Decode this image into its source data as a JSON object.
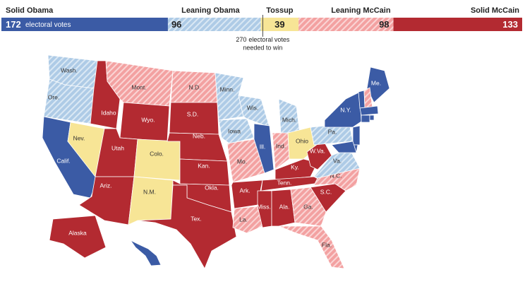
{
  "legend": {
    "unit_label": "electoral votes",
    "categories": [
      {
        "name": "Solid Obama",
        "votes": 172,
        "color": "#3b5ba5",
        "striped": false
      },
      {
        "name": "Leaning Obama",
        "votes": 96,
        "color": "#aecbe6",
        "striped": true
      },
      {
        "name": "Tossup",
        "votes": 39,
        "color": "#f7e596",
        "striped": false
      },
      {
        "name": "Leaning McCain",
        "votes": 98,
        "color": "#f3a1a1",
        "striped": true
      },
      {
        "name": "Solid McCain",
        "votes": 133,
        "color": "#b32a31",
        "striped": false
      }
    ],
    "threshold": 270,
    "threshold_text": [
      "electoral votes",
      "needed to win"
    ]
  },
  "map": {
    "states": [
      {
        "label": "Wash.",
        "category": 1
      },
      {
        "label": "Ore.",
        "category": 1
      },
      {
        "label": "Calif.",
        "category": 0
      },
      {
        "label": "Nev.",
        "category": 2
      },
      {
        "label": "Idaho",
        "category": 4
      },
      {
        "label": "Mont.",
        "category": 3
      },
      {
        "label": "Wyo.",
        "category": 4
      },
      {
        "label": "Utah",
        "category": 4
      },
      {
        "label": "Colo.",
        "category": 2
      },
      {
        "label": "Ariz.",
        "category": 4
      },
      {
        "label": "N.M.",
        "category": 2
      },
      {
        "label": "N.D.",
        "category": 3
      },
      {
        "label": "S.D.",
        "category": 4
      },
      {
        "label": "Neb.",
        "category": 4
      },
      {
        "label": "Kan.",
        "category": 4
      },
      {
        "label": "Okla.",
        "category": 4
      },
      {
        "label": "Tex.",
        "category": 4
      },
      {
        "label": "Minn.",
        "category": 1
      },
      {
        "label": "Iowa",
        "category": 1
      },
      {
        "label": "Mo.",
        "category": 3
      },
      {
        "label": "Ark.",
        "category": 4
      },
      {
        "label": "La.",
        "category": 3
      },
      {
        "label": "Wis.",
        "category": 1
      },
      {
        "label": "Ill.",
        "category": 0
      },
      {
        "label": "Mich.",
        "category": 1
      },
      {
        "label": "Ind.",
        "category": 3
      },
      {
        "label": "Ohio",
        "category": 2
      },
      {
        "label": "Ky.",
        "category": 4
      },
      {
        "label": "Tenn.",
        "category": 4
      },
      {
        "label": "Miss.",
        "category": 4
      },
      {
        "label": "Ala.",
        "category": 4
      },
      {
        "label": "Ga.",
        "category": 3
      },
      {
        "label": "Fla.",
        "category": 3
      },
      {
        "label": "S.C.",
        "category": 4
      },
      {
        "label": "N.C.",
        "category": 3
      },
      {
        "label": "Va.",
        "category": 1
      },
      {
        "label": "W.Va.",
        "category": 4
      },
      {
        "label": "Pa.",
        "category": 1
      },
      {
        "label": "N.Y.",
        "category": 0
      },
      {
        "label": "Me.",
        "category": 0
      },
      {
        "label": "Alaska",
        "category": 4
      },
      {
        "label": null,
        "category": 0
      },
      {
        "label": null,
        "category": 0
      },
      {
        "label": null,
        "category": 3
      },
      {
        "label": null,
        "category": 0
      },
      {
        "label": null,
        "category": 0
      },
      {
        "label": null,
        "category": 0
      },
      {
        "label": null,
        "category": 0
      },
      {
        "label": null,
        "category": 0
      },
      {
        "label": null,
        "category": 0
      }
    ]
  }
}
